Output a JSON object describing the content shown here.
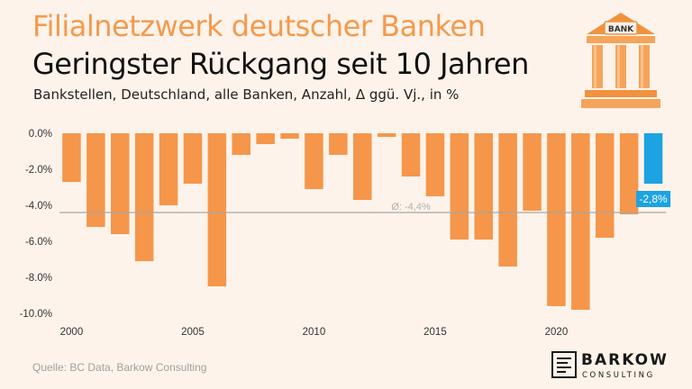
{
  "header": {
    "title_line1": "Filialnetzwerk deutscher Banken",
    "title_line2": "Geringster Rückgang seit 10 Jahren",
    "subtitle": "Bankstellen, Deutschland, alle Banken, Anzahl, Δ ggü. Vj., in %"
  },
  "footer": {
    "source": "Quelle: BC Data, Barkow Consulting",
    "logo_name": "BARKOW",
    "logo_sub": "CONSULTING"
  },
  "icon": {
    "name": "bank-building-icon",
    "label": "BANK"
  },
  "colors": {
    "bar": "#f5964a",
    "highlight": "#1ba3e2",
    "average_line": "#a6a6a6",
    "title_accent": "#f39a4e"
  },
  "chart_data": {
    "type": "bar",
    "x": [
      2000,
      2001,
      2002,
      2003,
      2004,
      2005,
      2006,
      2007,
      2008,
      2009,
      2010,
      2011,
      2012,
      2013,
      2014,
      2015,
      2016,
      2017,
      2018,
      2019,
      2020,
      2021,
      2022,
      2023,
      2024
    ],
    "values": [
      -2.7,
      -5.2,
      -5.6,
      -7.1,
      -4.0,
      -2.8,
      -8.5,
      -1.2,
      -0.6,
      -0.3,
      -3.1,
      -1.2,
      -3.7,
      -0.2,
      -2.4,
      -3.5,
      -5.9,
      -5.9,
      -7.4,
      -4.3,
      -9.6,
      -9.8,
      -5.8,
      -4.5,
      -2.8
    ],
    "highlight_index": 24,
    "highlight_label": "-2,8%",
    "average": -4.4,
    "average_label": "Ø: -4,4%",
    "x_tick_labels": [
      "2000",
      "2005",
      "2010",
      "2015",
      "2020"
    ],
    "y_tick_labels": [
      "0.0%",
      "-2.0%",
      "-4.0%",
      "-6.0%",
      "-8.0%",
      "-10.0%"
    ],
    "y_ticks": [
      0,
      -2,
      -4,
      -6,
      -8,
      -10
    ],
    "ylim": [
      -10,
      0
    ],
    "grid": false,
    "legend": "none"
  }
}
